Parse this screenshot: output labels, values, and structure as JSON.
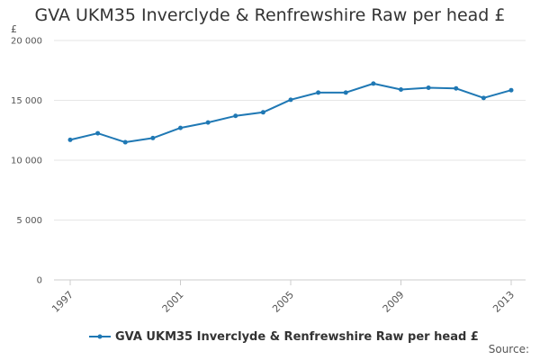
{
  "chart_data": {
    "type": "line",
    "title": "GVA UKM35 Inverclyde & Renfrewshire Raw per head £",
    "ylabel": "£",
    "xlabel": "",
    "ylim": [
      0,
      20000
    ],
    "grid": true,
    "yticks": [
      "0",
      "5 000",
      "10 000",
      "15 000",
      "20 000"
    ],
    "yticks_values": [
      0,
      5000,
      10000,
      15000,
      20000
    ],
    "xticks": [
      "1997",
      "2001",
      "2005",
      "2009",
      "2013"
    ],
    "x": [
      1997,
      1998,
      1999,
      2000,
      2001,
      2002,
      2003,
      2004,
      2005,
      2006,
      2007,
      2008,
      2009,
      2010,
      2011,
      2012,
      2013
    ],
    "series": [
      {
        "name": "GVA UKM35 Inverclyde & Renfrewshire Raw per head £",
        "color": "#1f78b4",
        "values": [
          11700,
          12250,
          11500,
          11850,
          12700,
          13150,
          13700,
          14000,
          15050,
          15650,
          15650,
          16400,
          15900,
          16050,
          16000,
          15200,
          15850
        ]
      }
    ],
    "legend_position": "bottom",
    "source_label": "Source:"
  }
}
